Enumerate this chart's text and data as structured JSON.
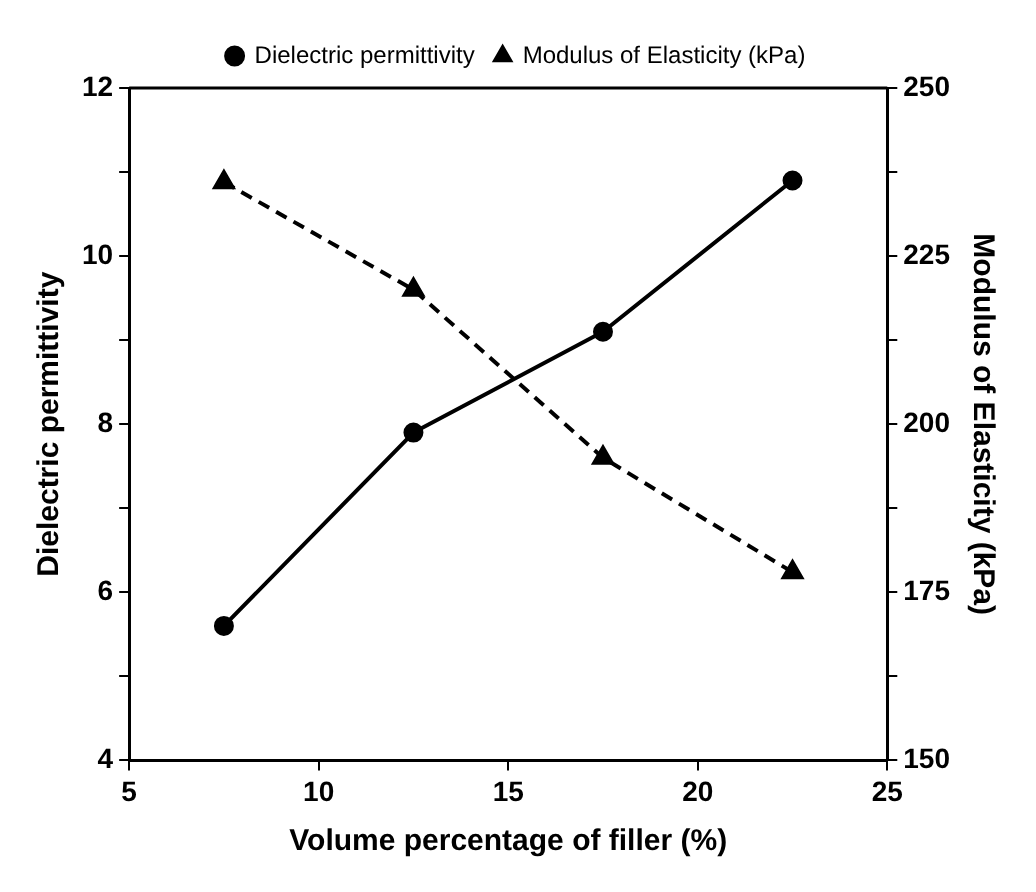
{
  "chart_data": {
    "type": "line",
    "xlabel": "Volume percentage of filler (%)",
    "ylabel": "Dielectric permittivity",
    "y2label": "Modulus of Elasticity (kPa)",
    "x": [
      7.5,
      12.5,
      17.5,
      22.5
    ],
    "xlim": [
      5,
      25
    ],
    "xticks": [
      5,
      10,
      15,
      20,
      25
    ],
    "ylim": [
      4,
      12
    ],
    "yticks": [
      4,
      {
        "value": 5,
        "label": null
      },
      6,
      {
        "value": 7,
        "label": null
      },
      8,
      {
        "value": 9,
        "label": null
      },
      10,
      {
        "value": 11,
        "label": null
      },
      12
    ],
    "y2lim": [
      150,
      250
    ],
    "y2ticks": [
      150,
      {
        "value": 162.5,
        "label": null
      },
      175,
      {
        "value": 187.5,
        "label": null
      },
      200,
      {
        "value": 212.5,
        "label": null
      },
      225,
      {
        "value": 237.5,
        "label": null
      },
      250
    ],
    "grid": false,
    "legend": "top",
    "series": [
      {
        "name": "Dielectric permittivity",
        "color": "#000000",
        "values": [
          5.6,
          7.9,
          9.1,
          10.9
        ],
        "marker": "circle",
        "line_style": "solid"
      },
      {
        "name": "Modulus of Elasticity (kPa)",
        "color": "#000000",
        "values": [
          236,
          220,
          195,
          178
        ],
        "marker": "triangle",
        "line_style": "dashed",
        "axis": "y2"
      }
    ]
  }
}
